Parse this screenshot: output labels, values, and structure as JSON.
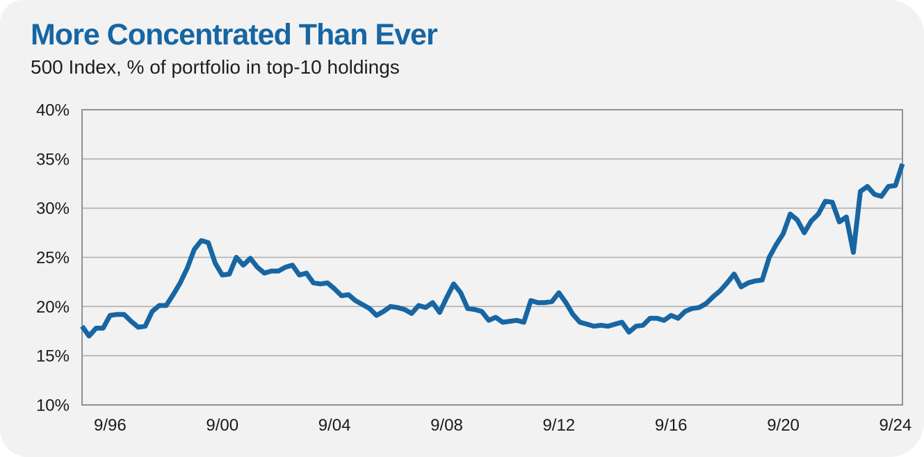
{
  "colors": {
    "accent_blue": "#1766A3",
    "card_background": "#F2F2F2",
    "page_background": "#FFFFFF",
    "grid": "#AEAEB0",
    "frame": "#8F9194",
    "axis_text": "#1A1A1A",
    "subtitle_text": "#1E1E1E"
  },
  "chart_data": {
    "type": "line",
    "title": "More Concentrated Than Ever",
    "subtitle": "500 Index, % of portfolio in top-10 holdings",
    "frequency": "quarterly",
    "x_start": "9/95",
    "x_end": "12/24",
    "ylim": [
      10,
      40
    ],
    "grid": "horizontal",
    "legend": "none",
    "y_tick_values": [
      10,
      15,
      20,
      25,
      30,
      35,
      40
    ],
    "y_tick_labels": [
      "10%",
      "15%",
      "20%",
      "25%",
      "30%",
      "35%",
      "40%"
    ],
    "x_tick_labels": [
      "9/96",
      "9/00",
      "9/04",
      "9/08",
      "9/12",
      "9/16",
      "9/20",
      "9/24"
    ],
    "x_tick_indices": [
      4,
      20,
      36,
      52,
      68,
      84,
      100,
      116
    ],
    "series": [
      {
        "name": "% of portfolio in top-10 holdings",
        "color": "#1766A3",
        "values": [
          18.0,
          17.0,
          17.8,
          17.8,
          19.1,
          19.2,
          19.2,
          18.5,
          17.9,
          18.0,
          19.5,
          20.1,
          20.1,
          21.2,
          22.4,
          23.9,
          25.8,
          26.7,
          26.5,
          24.4,
          23.2,
          23.3,
          25.0,
          24.2,
          24.9,
          24.0,
          23.4,
          23.6,
          23.6,
          24.0,
          24.2,
          23.2,
          23.4,
          22.4,
          22.3,
          22.4,
          21.8,
          21.1,
          21.2,
          20.6,
          20.2,
          19.8,
          19.1,
          19.5,
          20.0,
          19.9,
          19.7,
          19.3,
          20.1,
          19.9,
          20.4,
          19.4,
          20.9,
          22.3,
          21.4,
          19.8,
          19.7,
          19.5,
          18.6,
          18.9,
          18.4,
          18.5,
          18.6,
          18.4,
          20.6,
          20.4,
          20.4,
          20.5,
          21.4,
          20.4,
          19.2,
          18.4,
          18.2,
          18.0,
          18.1,
          18.0,
          18.2,
          18.4,
          17.4,
          18.0,
          18.1,
          18.8,
          18.8,
          18.6,
          19.1,
          18.8,
          19.5,
          19.8,
          19.9,
          20.3,
          21.0,
          21.6,
          22.4,
          23.3,
          22.0,
          22.4,
          22.6,
          22.7,
          25.0,
          26.3,
          27.4,
          29.4,
          28.8,
          27.5,
          28.7,
          29.4,
          30.7,
          30.6,
          28.6,
          29.1,
          25.5,
          31.7,
          32.2,
          31.4,
          31.2,
          32.2,
          32.3,
          34.5
        ]
      }
    ]
  }
}
